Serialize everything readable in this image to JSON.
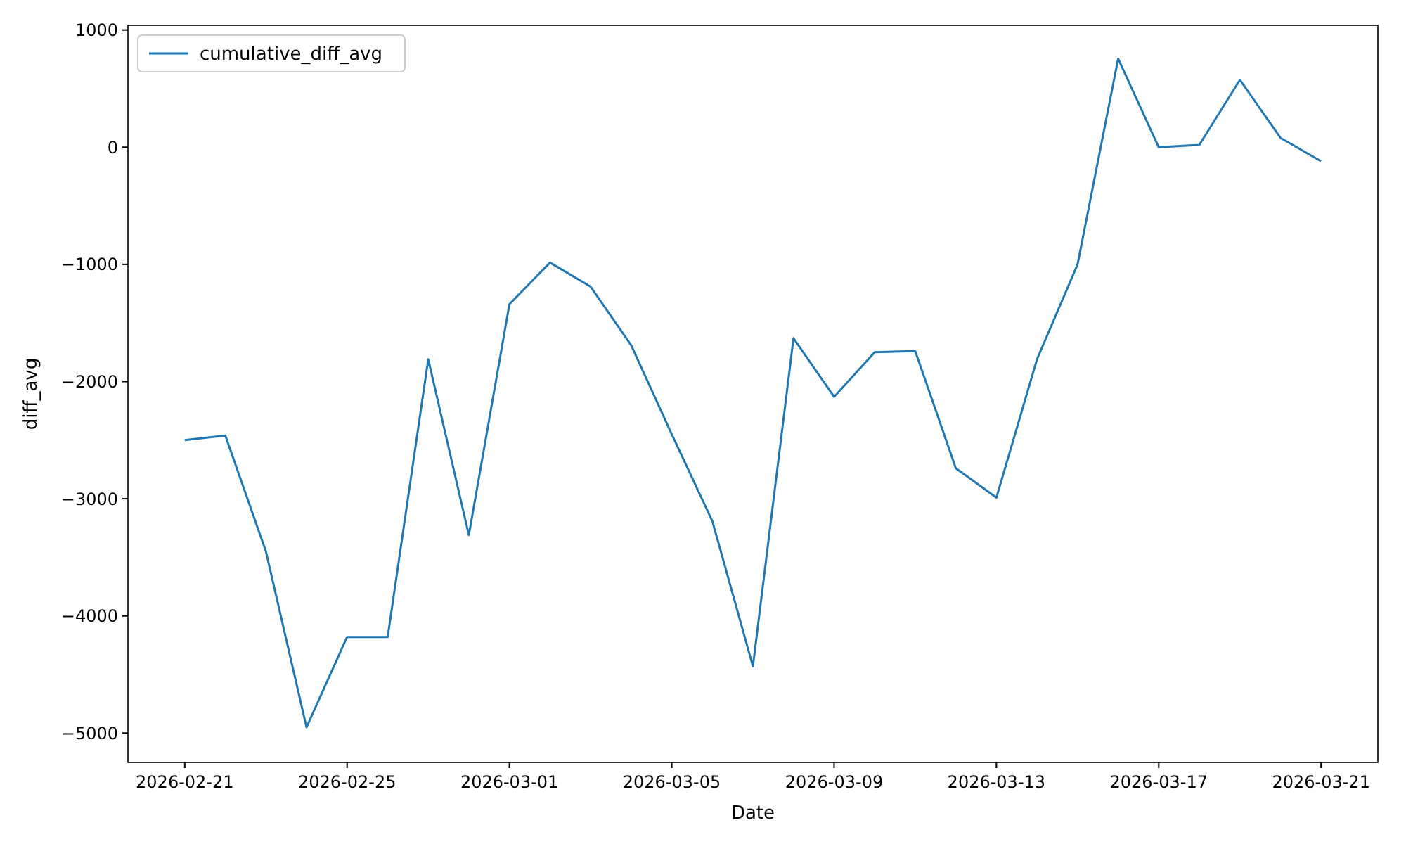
{
  "chart_data": {
    "type": "line",
    "xlabel": "Date",
    "ylabel": "diff_avg",
    "legend": "top left",
    "grid": false,
    "x": [
      "2026-02-21",
      "2026-02-22",
      "2026-02-23",
      "2026-02-24",
      "2026-02-25",
      "2026-02-26",
      "2026-02-27",
      "2026-02-28",
      "2026-03-01",
      "2026-03-02",
      "2026-03-03",
      "2026-03-04",
      "2026-03-05",
      "2026-03-06",
      "2026-03-07",
      "2026-03-08",
      "2026-03-09",
      "2026-03-10",
      "2026-03-11",
      "2026-03-12",
      "2026-03-13",
      "2026-03-14",
      "2026-03-15",
      "2026-03-16",
      "2026-03-17",
      "2026-03-18",
      "2026-03-19",
      "2026-03-20",
      "2026-03-21"
    ],
    "series": [
      {
        "name": "cumulative_diff_avg",
        "color": "#1f77b4",
        "values": [
          -2500,
          -2460,
          -3450,
          -4950,
          -4180,
          -4180,
          -1810,
          -3310,
          -1340,
          -985,
          -1190,
          -1690,
          -2450,
          -3190,
          -4430,
          -1630,
          -2130,
          -1750,
          -1740,
          -2740,
          -2990,
          -1810,
          -1000,
          755,
          0,
          20,
          575,
          80,
          -120
        ]
      }
    ],
    "xlim": [
      "2026-02-19T14:24",
      "2026-03-22T09:36"
    ],
    "xticks": [
      "2026-02-21",
      "2026-02-25",
      "2026-03-01",
      "2026-03-05",
      "2026-03-09",
      "2026-03-13",
      "2026-03-17",
      "2026-03-21"
    ],
    "ylim": [
      -5250,
      1040
    ],
    "yticks": [
      {
        "value": -5000,
        "label": "−5000"
      },
      {
        "value": -4000,
        "label": "−4000"
      },
      {
        "value": -3000,
        "label": "−3000"
      },
      {
        "value": -2000,
        "label": "−2000"
      },
      {
        "value": -1000,
        "label": "−1000"
      },
      0,
      1000
    ]
  }
}
